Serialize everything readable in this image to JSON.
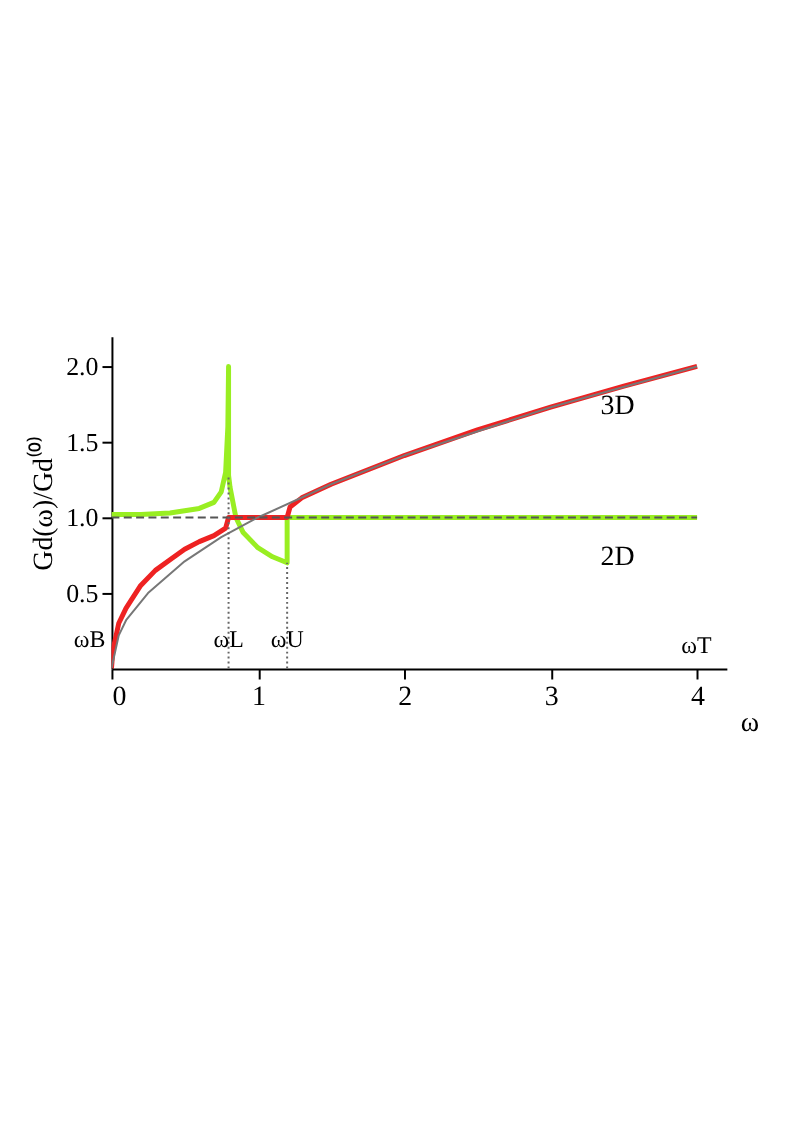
{
  "chart_data": {
    "type": "line",
    "ylabel": "Gd(ω)/Gd⁽⁰⁾",
    "xlabel": "ω",
    "xlim": [
      0,
      4.2
    ],
    "ylim": [
      0,
      2.2
    ],
    "xticks": [
      0,
      1,
      2,
      3,
      4
    ],
    "yticks": [
      0.5,
      {
        "value": 1,
        "label": "1.0"
      },
      1.5,
      {
        "value": 2,
        "label": "2.0"
      }
    ],
    "grid": false,
    "series": [
      {
        "name": "2D",
        "color": "#99ee22",
        "x": [
          0,
          0.2,
          0.4,
          0.6,
          0.7,
          0.75,
          0.78,
          0.795,
          0.8,
          0.8,
          0.81,
          0.85,
          0.9,
          1.0,
          1.1,
          1.2,
          1.2,
          4
        ],
        "values": [
          1.02,
          1.02,
          1.03,
          1.06,
          1.1,
          1.17,
          1.3,
          1.6,
          2.0,
          1.28,
          1.2,
          1.0,
          0.9,
          0.8,
          0.74,
          0.7,
          1.0,
          1.0
        ]
      },
      {
        "name": "3D",
        "color": "#ee2222",
        "x": [
          0,
          0.01,
          0.05,
          0.1,
          0.2,
          0.3,
          0.4,
          0.5,
          0.6,
          0.7,
          0.78,
          0.8,
          1.2,
          1.22,
          1.3,
          1.5,
          2,
          2.5,
          3,
          3.5,
          4
        ],
        "values": [
          0,
          0.12,
          0.3,
          0.4,
          0.55,
          0.65,
          0.72,
          0.79,
          0.84,
          0.88,
          0.93,
          1.0,
          1.0,
          1.07,
          1.13,
          1.22,
          1.41,
          1.58,
          1.73,
          1.87,
          2.0
        ]
      },
      {
        "color": "#777777",
        "x": [
          0,
          0.05,
          0.1,
          0.25,
          0.5,
          0.75,
          1,
          1.5,
          2,
          3,
          4
        ],
        "values": [
          0,
          0.22,
          0.32,
          0.5,
          0.71,
          0.87,
          1,
          1.22,
          1.41,
          1.73,
          2
        ]
      },
      {
        "color": "#555555",
        "line_style": "dashed",
        "x": [
          0,
          4
        ],
        "values": [
          1,
          1
        ]
      },
      {
        "color": "#666666",
        "line_style": "dotted",
        "x": [
          0.8,
          0.8
        ],
        "values": [
          0,
          1.28
        ]
      },
      {
        "color": "#666666",
        "line_style": "dotted",
        "x": [
          1.2,
          1.2
        ],
        "values": [
          0,
          0.7
        ]
      }
    ],
    "annotations": [
      {
        "text": "ωB",
        "x": 0,
        "y": 0.05
      },
      {
        "text": "ωL",
        "x": 0.8,
        "y": 0.05
      },
      {
        "text": "ωU",
        "x": 1.2,
        "y": 0.05
      },
      "ωT"
    ]
  }
}
